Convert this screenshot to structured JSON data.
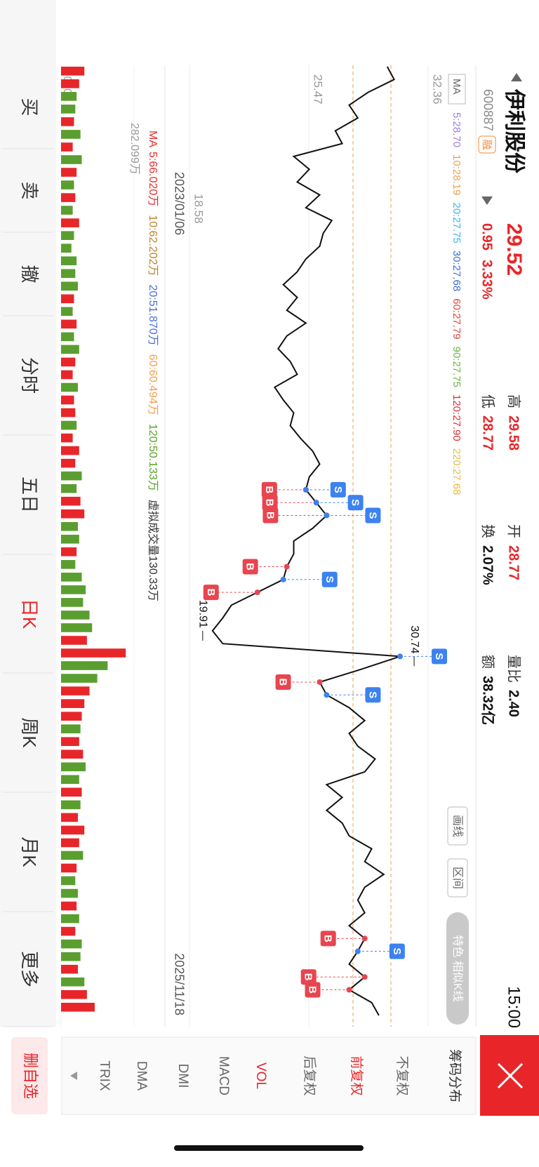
{
  "header": {
    "name": "伊利股份",
    "code": "600887",
    "badge": "融",
    "price": "29.52",
    "change": "0.95",
    "change_pct": "3.33%",
    "time": "15:00"
  },
  "quote": [
    {
      "label": "高",
      "value": "29.58"
    },
    {
      "label": "低",
      "value": "28.77"
    },
    {
      "label": "开",
      "value": "28.77"
    },
    {
      "label": "换",
      "value": "2.07%"
    },
    {
      "label": "量比",
      "value": "2.40"
    },
    {
      "label": "额",
      "value": "38.32亿"
    }
  ],
  "ma_label": "MA",
  "ma": [
    {
      "text": "5:28.70",
      "color": "#9a7ed8"
    },
    {
      "text": "10:28.19",
      "color": "#f0a050"
    },
    {
      "text": "20:27.75",
      "color": "#3bb7e6"
    },
    {
      "text": "30:27.68",
      "color": "#3a6fd8"
    },
    {
      "text": "60:27.79",
      "color": "#e0453a"
    },
    {
      "text": "90:27.75",
      "color": "#6ab540"
    },
    {
      "text": "120:27.90",
      "color": "#d93030"
    },
    {
      "text": "220:27.68",
      "color": "#e8b93a"
    }
  ],
  "tools": [
    "画线",
    "区间",
    "特色 相似K线"
  ],
  "chart_data": {
    "type": "line",
    "color": "#111111",
    "start_date": "2023/01/06",
    "end_date": "2025/11/18",
    "values": [
      30.0,
      30.4,
      28.9,
      27.8,
      28.3,
      27.0,
      27.4,
      24.6,
      25.5,
      24.8,
      26.1,
      25.3,
      26.8,
      26.3,
      26.1,
      25.3,
      24.8,
      24.0,
      24.8,
      24.2,
      25.3,
      24.2,
      23.7,
      24.4,
      24.8,
      23.5,
      24.0,
      24.6,
      24.4,
      25.0,
      25.7,
      26.1,
      25.5,
      25.3,
      25.9,
      26.5,
      25.7,
      24.6,
      24.6,
      24.2,
      24.0,
      22.5,
      21.0,
      20.5,
      19.91,
      20.5,
      30.74,
      28.5,
      26.1,
      26.5,
      27.8,
      28.7,
      27.8,
      28.3,
      29.3,
      28.7,
      26.5,
      27.4,
      26.5,
      27.4,
      27.8,
      29.1,
      28.7,
      29.8,
      28.7,
      28.3,
      28.7,
      27.8,
      28.7,
      28.3,
      27.8,
      28.7,
      27.8,
      29.1,
      29.52
    ],
    "ylim": [
      18.58,
      32.36
    ],
    "yticks": [
      18.58,
      25.47,
      32.36
    ],
    "annotations": [
      {
        "index": 46,
        "label": "30.74"
      },
      {
        "index": 44,
        "label": "19.91"
      }
    ],
    "markers": [
      {
        "label": "B",
        "index": 33
      },
      {
        "label": "B",
        "index": 34
      },
      {
        "label": "B",
        "index": 35
      },
      {
        "label": "S",
        "index": 33
      },
      {
        "label": "S",
        "index": 34
      },
      {
        "label": "S",
        "index": 35
      },
      {
        "label": "B",
        "index": 39
      },
      {
        "label": "B",
        "index": 41
      },
      {
        "label": "S",
        "index": 40
      },
      {
        "label": "B",
        "index": 48
      },
      {
        "label": "S",
        "index": 46
      },
      {
        "label": "S",
        "index": 49
      },
      {
        "label": "B",
        "index": 68
      },
      {
        "label": "S",
        "index": 69
      },
      {
        "label": "B",
        "index": 71
      },
      {
        "label": "B",
        "index": 72
      }
    ]
  },
  "volume": {
    "ma_label": "MA",
    "ma": [
      {
        "text": "5:66.020万",
        "color": "#e0312f"
      },
      {
        "text": "10:62.202万",
        "color": "#b8862c"
      },
      {
        "text": "20:51.870万",
        "color": "#4a6fd8"
      },
      {
        "text": "60:60.494万",
        "color": "#f0a050"
      },
      {
        "text": "120:50.133万",
        "color": "#5aa32c"
      },
      {
        "text": "虚拟成交量130.33万",
        "color": "#333333"
      }
    ],
    "ylim": [
      0,
      282.099
    ],
    "yticks": [
      {
        "value": 0,
        "label": "0.000"
      },
      {
        "value": 282.099,
        "label": "282.099万"
      }
    ],
    "values": [
      90,
      70,
      60,
      55,
      50,
      75,
      45,
      80,
      60,
      50,
      55,
      45,
      70,
      50,
      40,
      60,
      55,
      65,
      50,
      45,
      60,
      50,
      70,
      55,
      45,
      65,
      50,
      55,
      60,
      45,
      70,
      55,
      80,
      60,
      75,
      90,
      65,
      70,
      60,
      55,
      80,
      95,
      85,
      110,
      120,
      100,
      250,
      180,
      140,
      110,
      90,
      80,
      75,
      70,
      85,
      95,
      70,
      80,
      75,
      65,
      90,
      70,
      85,
      60,
      55,
      65,
      60,
      70,
      55,
      80,
      75,
      65,
      90,
      100,
      130
    ]
  },
  "bottom_tabs": [
    {
      "text": "买"
    },
    {
      "text": "卖"
    },
    {
      "text": "撤"
    },
    {
      "text": "分时"
    },
    {
      "text": "五日"
    },
    {
      "text": "日K",
      "active": true
    },
    {
      "text": "周K"
    },
    {
      "text": "月K"
    },
    {
      "text": "更多"
    }
  ],
  "indicator_panel": {
    "title": "筹码分布",
    "items": [
      {
        "text": "不复权"
      },
      {
        "text": "前复权",
        "active": true
      },
      {
        "text": "后复权"
      },
      {
        "text": "VOL",
        "active": true
      },
      {
        "text": "MACD"
      },
      {
        "text": "DMI"
      },
      {
        "text": "DMA"
      },
      {
        "text": "TRIX"
      }
    ]
  },
  "delete": "删自选"
}
